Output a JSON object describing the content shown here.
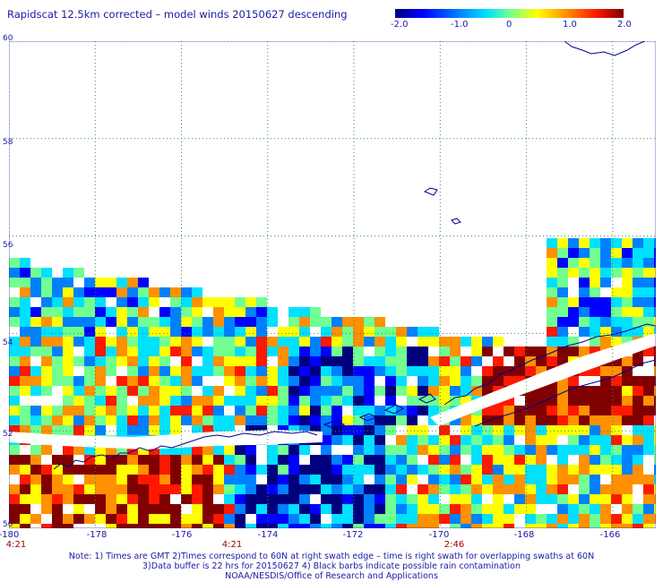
{
  "title": "Rapidscat 12.5km corrected – model winds 20150627 descending",
  "colorbar": {
    "ticks": [
      "-2.0",
      "-1.0",
      "0",
      "1.0",
      "2.0"
    ],
    "tick_values": [
      -2,
      -1,
      0,
      1,
      2
    ],
    "colors": [
      "#00007f",
      "#0000ff",
      "#0080ff",
      "#00e0ff",
      "#70ff90",
      "#ffff00",
      "#ff9000",
      "#ff1800",
      "#800000"
    ]
  },
  "map": {
    "lon_range": [
      -180,
      -165
    ],
    "lat_range": [
      50,
      60
    ],
    "lon_ticks": [
      "-180",
      "-178",
      "-176",
      "-174",
      "-172",
      "-170",
      "-168",
      "-166"
    ],
    "lon_tick_values": [
      -180,
      -178,
      -176,
      -174,
      -172,
      -170,
      -168,
      -166
    ],
    "lat_ticks": [
      "60",
      "58",
      "56",
      "54",
      "52",
      "50"
    ],
    "lat_tick_values": [
      60,
      58,
      56,
      54,
      52,
      50
    ],
    "grid": "dotted",
    "time_labels": [
      {
        "text": "4:21",
        "lon": -180
      },
      {
        "text": "4:21",
        "lon": -174.5
      },
      {
        "text": "2:46",
        "lon": -170
      }
    ]
  },
  "notes": [
    "Note: 1) Times are GMT 2)Times correspond to 60N at right swath edge – time is right swath for overlapping swaths at 60N",
    "3)Data buffer is 22 hrs for 20150627 4) Black barbs indicate possible rain contamination",
    "NOAA/NESDIS/Office of Research and Applications"
  ]
}
